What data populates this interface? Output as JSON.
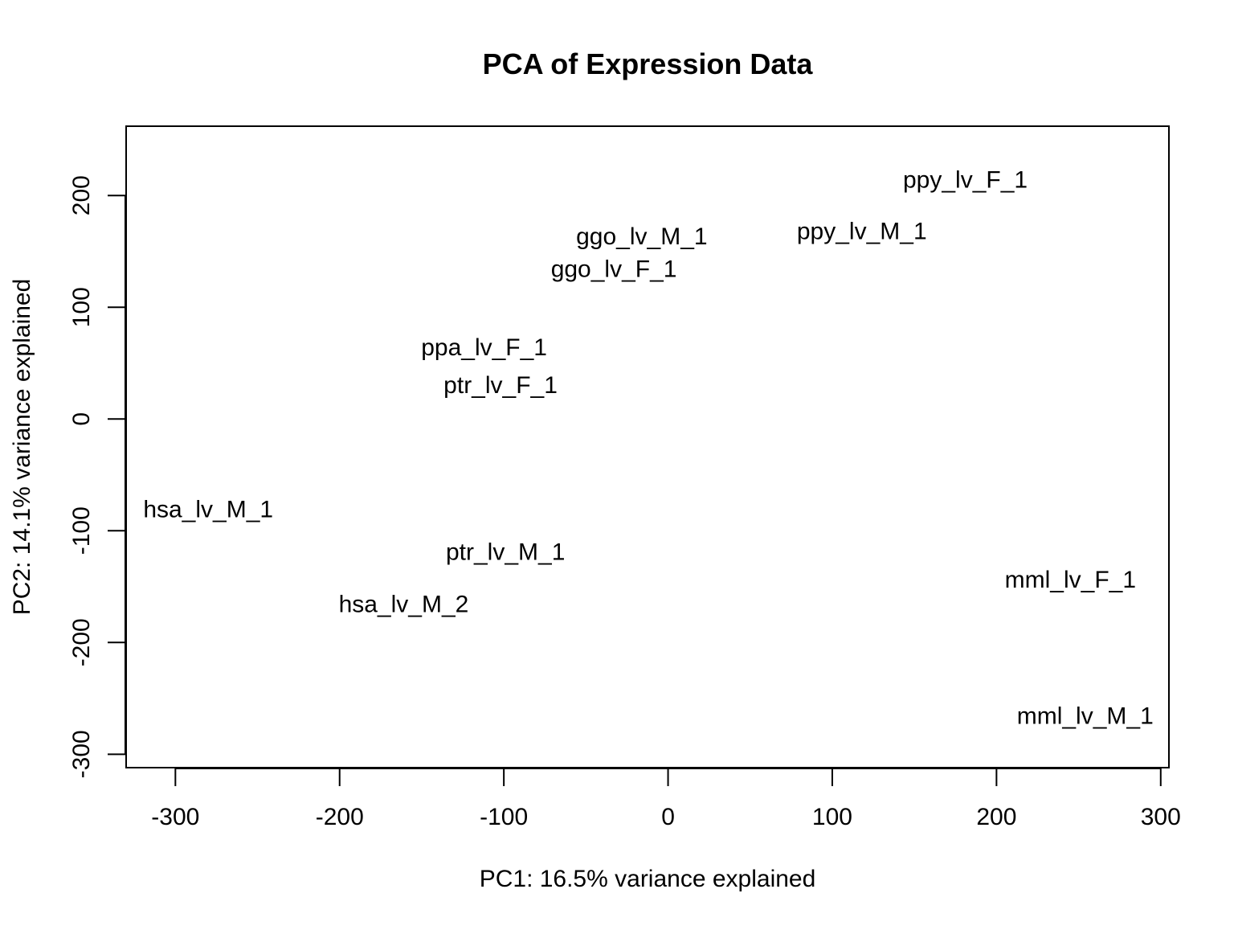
{
  "chart_data": {
    "type": "scatter",
    "title": "PCA of Expression Data",
    "xlabel": "PC1: 16.5% variance explained",
    "ylabel": "PC2: 14.1% variance explained",
    "xlim": [
      -330,
      305
    ],
    "ylim": [
      -312,
      262
    ],
    "xticks": [
      -300,
      -200,
      -100,
      0,
      100,
      200,
      300
    ],
    "yticks": [
      -300,
      -200,
      -100,
      0,
      100,
      200
    ],
    "grid": false,
    "marker": "text-label",
    "points": [
      {
        "label": "ppy_lv_F_1",
        "x": 181,
        "y": 215
      },
      {
        "label": "ppy_lv_M_1",
        "x": 118,
        "y": 169
      },
      {
        "label": "ggo_lv_M_1",
        "x": -16,
        "y": 164
      },
      {
        "label": "ggo_lv_F_1",
        "x": -33,
        "y": 135
      },
      {
        "label": "ppa_lv_F_1",
        "x": -112,
        "y": 65
      },
      {
        "label": "ptr_lv_F_1",
        "x": -102,
        "y": 31
      },
      {
        "label": "hsa_lv_M_1",
        "x": -280,
        "y": -80
      },
      {
        "label": "ptr_lv_M_1",
        "x": -99,
        "y": -118
      },
      {
        "label": "hsa_lv_M_2",
        "x": -161,
        "y": -165
      },
      {
        "label": "mml_lv_F_1",
        "x": 245,
        "y": -143
      },
      {
        "label": "mml_lv_M_1",
        "x": 254,
        "y": -265
      }
    ]
  }
}
